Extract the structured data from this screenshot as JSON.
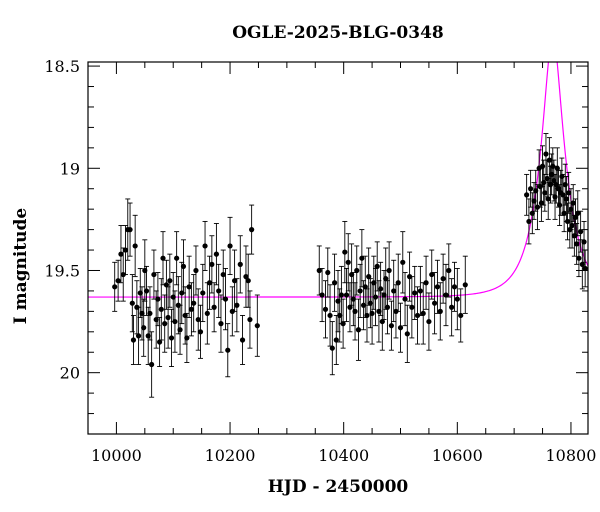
{
  "chart_data": {
    "type": "scatter",
    "title": "OGLE-2025-BLG-0348",
    "xlabel": "HJD - 2450000",
    "ylabel": "I magnitude",
    "xlim": [
      9950,
      10830
    ],
    "ylim": [
      20.3,
      18.48
    ],
    "y_inverted": true,
    "x_ticks": [
      10000,
      10200,
      10400,
      10600,
      10800
    ],
    "y_ticks": [
      18.5,
      19,
      19.5,
      20
    ],
    "x_tick_labels": [
      "10000",
      "10200",
      "10400",
      "10600",
      "10800"
    ],
    "y_tick_labels": [
      "18.5",
      "19",
      "19.5",
      "20"
    ],
    "grid": false,
    "legend": "none",
    "colors": {
      "points": "#000000",
      "model": "#ff00ff",
      "axes": "#000000"
    },
    "series": [
      {
        "type": "scatter_errorbar",
        "points": [
          [
            9997,
            19.58,
            0.12
          ],
          [
            10003,
            19.55,
            0.1
          ],
          [
            10008,
            19.42,
            0.14
          ],
          [
            10012,
            19.52,
            0.13
          ],
          [
            10016,
            19.4,
            0.12
          ],
          [
            10020,
            19.3,
            0.15
          ],
          [
            10024,
            19.3,
            0.13
          ],
          [
            10028,
            19.66,
            0.14
          ],
          [
            10030,
            19.84,
            0.12
          ],
          [
            10033,
            19.38,
            0.15
          ],
          [
            10036,
            19.68,
            0.13
          ],
          [
            10039,
            19.82,
            0.14
          ],
          [
            10042,
            19.61,
            0.12
          ],
          [
            10045,
            19.71,
            0.13
          ],
          [
            10048,
            19.78,
            0.14
          ],
          [
            10050,
            19.5,
            0.15
          ],
          [
            10053,
            19.6,
            0.12
          ],
          [
            10056,
            19.82,
            0.14
          ],
          [
            10059,
            19.71,
            0.13
          ],
          [
            10062,
            19.96,
            0.16
          ],
          [
            10066,
            19.52,
            0.12
          ],
          [
            10070,
            19.74,
            0.14
          ],
          [
            10073,
            19.64,
            0.13
          ],
          [
            10076,
            19.85,
            0.12
          ],
          [
            10079,
            19.69,
            0.15
          ],
          [
            10082,
            19.44,
            0.13
          ],
          [
            10085,
            19.76,
            0.14
          ],
          [
            10088,
            19.57,
            0.12
          ],
          [
            10091,
            19.73,
            0.15
          ],
          [
            10094,
            19.55,
            0.13
          ],
          [
            10097,
            19.83,
            0.14
          ],
          [
            10100,
            19.63,
            0.12
          ],
          [
            10103,
            19.75,
            0.15
          ],
          [
            10106,
            19.44,
            0.13
          ],
          [
            10109,
            19.67,
            0.14
          ],
          [
            10112,
            19.79,
            0.12
          ],
          [
            10115,
            19.61,
            0.15
          ],
          [
            10118,
            19.48,
            0.13
          ],
          [
            10121,
            19.72,
            0.14
          ],
          [
            10124,
            19.83,
            0.12
          ],
          [
            10128,
            19.58,
            0.15
          ],
          [
            10132,
            19.69,
            0.13
          ],
          [
            10136,
            19.66,
            0.14
          ],
          [
            10140,
            19.5,
            0.12
          ],
          [
            10144,
            19.74,
            0.15
          ],
          [
            10148,
            19.8,
            0.13
          ],
          [
            10152,
            19.61,
            0.14
          ],
          [
            10156,
            19.38,
            0.12
          ],
          [
            10160,
            19.71,
            0.15
          ],
          [
            10164,
            19.56,
            0.13
          ],
          [
            10168,
            19.47,
            0.14
          ],
          [
            10172,
            19.68,
            0.12
          ],
          [
            10176,
            19.42,
            0.15
          ],
          [
            10180,
            19.6,
            0.13
          ],
          [
            10184,
            19.76,
            0.14
          ],
          [
            10188,
            19.52,
            0.12
          ],
          [
            10192,
            19.64,
            0.15
          ],
          [
            10196,
            19.89,
            0.13
          ],
          [
            10200,
            19.38,
            0.14
          ],
          [
            10204,
            19.7,
            0.12
          ],
          [
            10208,
            19.55,
            0.15
          ],
          [
            10212,
            19.67,
            0.13
          ],
          [
            10218,
            19.47,
            0.14
          ],
          [
            10222,
            19.84,
            0.12
          ],
          [
            10228,
            19.53,
            0.15
          ],
          [
            10232,
            19.55,
            0.13
          ],
          [
            10235,
            19.74,
            0.14
          ],
          [
            10238,
            19.3,
            0.12
          ],
          [
            10248,
            19.77,
            0.15
          ],
          [
            10357,
            19.5,
            0.12
          ],
          [
            10362,
            19.62,
            0.13
          ],
          [
            10368,
            19.69,
            0.14
          ],
          [
            10372,
            19.51,
            0.12
          ],
          [
            10376,
            19.72,
            0.15
          ],
          [
            10380,
            19.88,
            0.13
          ],
          [
            10384,
            19.56,
            0.14
          ],
          [
            10387,
            19.84,
            0.12
          ],
          [
            10390,
            19.65,
            0.15
          ],
          [
            10393,
            19.72,
            0.13
          ],
          [
            10396,
            19.62,
            0.14
          ],
          [
            10399,
            19.76,
            0.12
          ],
          [
            10402,
            19.41,
            0.15
          ],
          [
            10405,
            19.62,
            0.13
          ],
          [
            10408,
            19.46,
            0.14
          ],
          [
            10411,
            19.68,
            0.12
          ],
          [
            10414,
            19.52,
            0.15
          ],
          [
            10417,
            19.64,
            0.13
          ],
          [
            10420,
            19.7,
            0.14
          ],
          [
            10423,
            19.5,
            0.12
          ],
          [
            10426,
            19.79,
            0.15
          ],
          [
            10429,
            19.6,
            0.13
          ],
          [
            10432,
            19.44,
            0.14
          ],
          [
            10435,
            19.67,
            0.12
          ],
          [
            10438,
            19.58,
            0.15
          ],
          [
            10441,
            19.72,
            0.13
          ],
          [
            10444,
            19.53,
            0.14
          ],
          [
            10447,
            19.66,
            0.12
          ],
          [
            10450,
            19.71,
            0.15
          ],
          [
            10453,
            19.56,
            0.13
          ],
          [
            10456,
            19.63,
            0.14
          ],
          [
            10459,
            19.48,
            0.12
          ],
          [
            10462,
            19.7,
            0.15
          ],
          [
            10465,
            19.59,
            0.13
          ],
          [
            10468,
            19.75,
            0.14
          ],
          [
            10471,
            19.62,
            0.12
          ],
          [
            10474,
            19.54,
            0.15
          ],
          [
            10477,
            19.68,
            0.13
          ],
          [
            10480,
            19.5,
            0.14
          ],
          [
            10484,
            19.77,
            0.12
          ],
          [
            10488,
            19.6,
            0.15
          ],
          [
            10492,
            19.7,
            0.13
          ],
          [
            10496,
            19.56,
            0.14
          ],
          [
            10500,
            19.78,
            0.12
          ],
          [
            10504,
            19.46,
            0.15
          ],
          [
            10508,
            19.64,
            0.13
          ],
          [
            10512,
            19.81,
            0.14
          ],
          [
            10516,
            19.53,
            0.12
          ],
          [
            10520,
            19.68,
            0.15
          ],
          [
            10525,
            19.61,
            0.13
          ],
          [
            10530,
            19.72,
            0.14
          ],
          [
            10535,
            19.6,
            0.12
          ],
          [
            10540,
            19.71,
            0.15
          ],
          [
            10545,
            19.56,
            0.13
          ],
          [
            10550,
            19.75,
            0.14
          ],
          [
            10555,
            19.52,
            0.12
          ],
          [
            10560,
            19.66,
            0.15
          ],
          [
            10565,
            19.58,
            0.13
          ],
          [
            10570,
            19.7,
            0.14
          ],
          [
            10575,
            19.54,
            0.12
          ],
          [
            10580,
            19.62,
            0.15
          ],
          [
            10585,
            19.5,
            0.13
          ],
          [
            10590,
            19.68,
            0.14
          ],
          [
            10595,
            19.58,
            0.12
          ],
          [
            10600,
            19.64,
            0.15
          ],
          [
            10606,
            19.72,
            0.13
          ],
          [
            10614,
            19.57,
            0.14
          ],
          [
            10722,
            19.13,
            0.1
          ],
          [
            10726,
            19.26,
            0.11
          ],
          [
            10729,
            19.1,
            0.09
          ],
          [
            10732,
            19.22,
            0.1
          ],
          [
            10735,
            19.16,
            0.09
          ],
          [
            10738,
            19.11,
            0.1
          ],
          [
            10741,
            19.19,
            0.11
          ],
          [
            10744,
            19.0,
            0.09
          ],
          [
            10746,
            19.09,
            0.1
          ],
          [
            10748,
            19.17,
            0.09
          ],
          [
            10750,
            18.99,
            0.1
          ],
          [
            10752,
            19.07,
            0.11
          ],
          [
            10754,
            19.12,
            0.09
          ],
          [
            10756,
            18.93,
            0.1
          ],
          [
            10758,
            19.05,
            0.09
          ],
          [
            10760,
            19.15,
            0.1
          ],
          [
            10762,
            18.96,
            0.11
          ],
          [
            10764,
            19.08,
            0.09
          ],
          [
            10766,
            19.03,
            0.1
          ],
          [
            10768,
            18.99,
            0.09
          ],
          [
            10770,
            19.06,
            0.1
          ],
          [
            10772,
            19.14,
            0.11
          ],
          [
            10774,
            19.08,
            0.09
          ],
          [
            10776,
            19.0,
            0.1
          ],
          [
            10778,
            19.1,
            0.09
          ],
          [
            10780,
            19.18,
            0.1
          ],
          [
            10782,
            19.12,
            0.11
          ],
          [
            10784,
            19.04,
            0.09
          ],
          [
            10786,
            19.13,
            0.1
          ],
          [
            10788,
            19.22,
            0.09
          ],
          [
            10790,
            19.08,
            0.1
          ],
          [
            10792,
            19.15,
            0.11
          ],
          [
            10794,
            19.26,
            0.09
          ],
          [
            10796,
            19.12,
            0.1
          ],
          [
            10798,
            19.3,
            0.09
          ],
          [
            10800,
            19.2,
            0.1
          ],
          [
            10802,
            19.28,
            0.11
          ],
          [
            10804,
            19.17,
            0.09
          ],
          [
            10806,
            19.33,
            0.1
          ],
          [
            10808,
            19.24,
            0.09
          ],
          [
            10810,
            19.37,
            0.1
          ],
          [
            10812,
            19.22,
            0.11
          ],
          [
            10814,
            19.44,
            0.09
          ],
          [
            10817,
            19.31,
            0.1
          ],
          [
            10820,
            19.47,
            0.12
          ],
          [
            10823,
            19.36,
            0.1
          ],
          [
            10825,
            19.49,
            0.09
          ]
        ]
      },
      {
        "type": "line",
        "model": {
          "baseline_mag": 19.63,
          "u0": 0.32,
          "t0": 10768,
          "tE": 44.5,
          "x_range": [
            9950,
            10830
          ]
        }
      }
    ]
  }
}
